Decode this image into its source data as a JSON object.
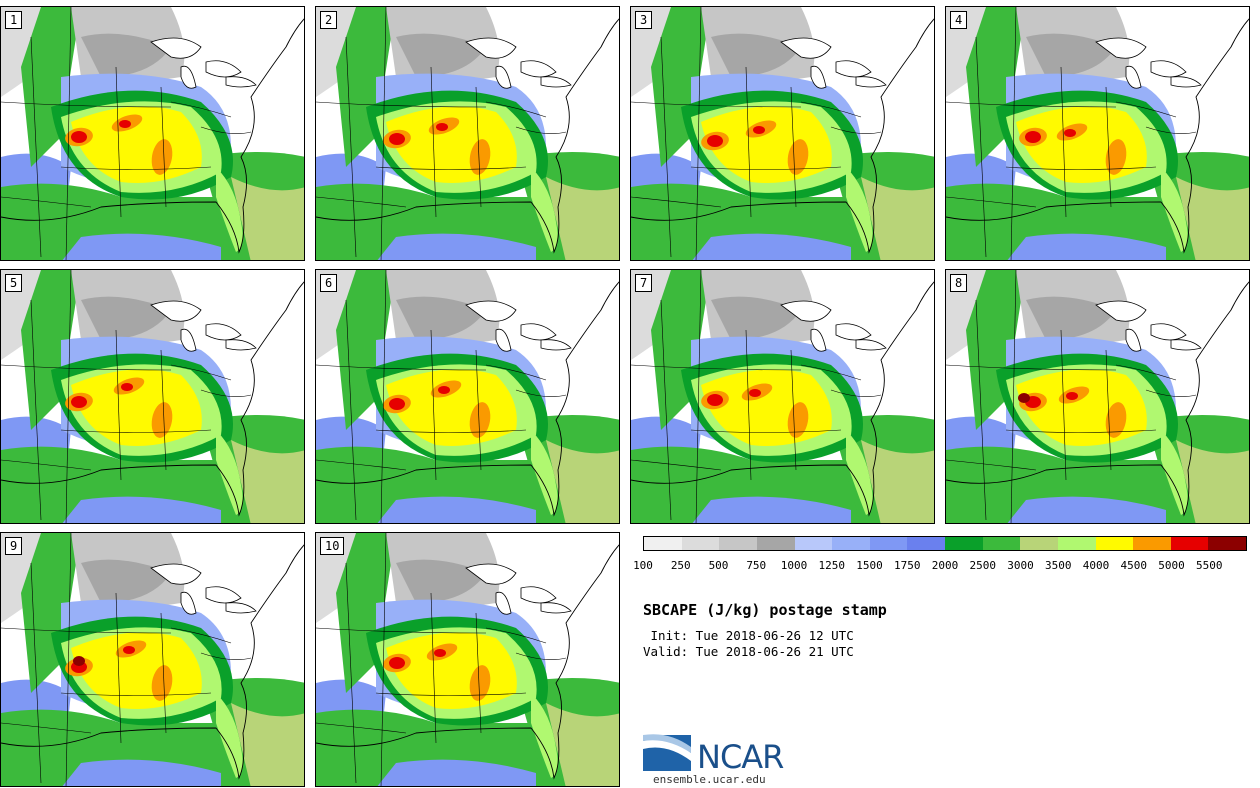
{
  "members": [
    {
      "label": "1"
    },
    {
      "label": "2"
    },
    {
      "label": "3"
    },
    {
      "label": "4"
    },
    {
      "label": "5"
    },
    {
      "label": "6"
    },
    {
      "label": "7"
    },
    {
      "label": "8"
    },
    {
      "label": "9"
    },
    {
      "label": "10"
    }
  ],
  "colorbar": {
    "colors": [
      "#f0f0f0",
      "#dcdcdc",
      "#c6c6c6",
      "#a6a6a6",
      "#b8c8fa",
      "#98b0f8",
      "#7f98f4",
      "#6a80ee",
      "#0aa02a",
      "#3cba3c",
      "#b8d478",
      "#b0f870",
      "#fffa00",
      "#fa9a00",
      "#e60000",
      "#8c0000"
    ],
    "tick_labels": [
      "100",
      "250",
      "500",
      "750",
      "1000",
      "1250",
      "1500",
      "1750",
      "2000",
      "2500",
      "3000",
      "3500",
      "4000",
      "4500",
      "5000",
      "5500"
    ]
  },
  "title": "SBCAPE (J/kg) postage stamp",
  "init_text": " Init: Tue 2018-06-26 12 UTC",
  "valid_text": "Valid: Tue 2018-06-26 21 UTC",
  "logo": {
    "name": "NCAR",
    "url": "ensemble.ucar.edu"
  }
}
